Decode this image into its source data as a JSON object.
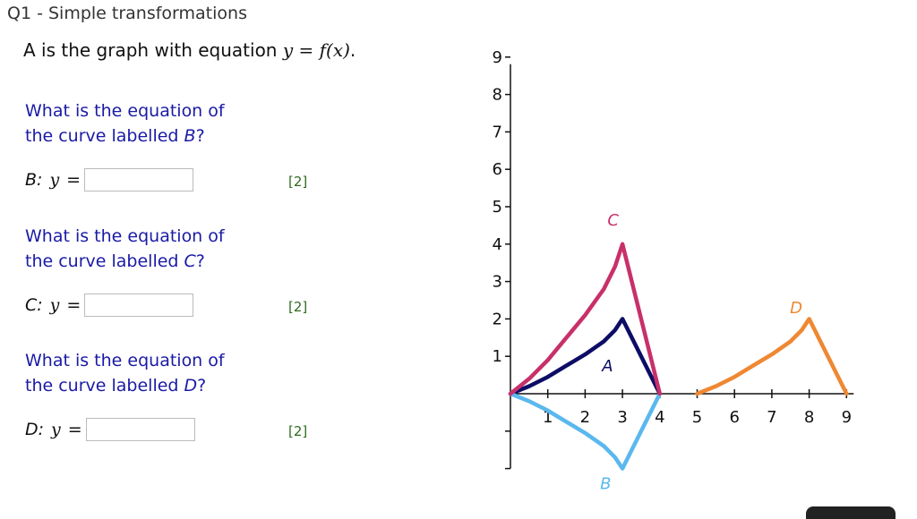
{
  "title": "Q1 - Simple transformations",
  "intro": {
    "text_before": "A is the graph with equation",
    "equation": "y = f(x)",
    "text_after": "."
  },
  "questions": [
    {
      "line1": "What is the equation of",
      "line2_prefix": "the curve labelled ",
      "curve": "B",
      "line2_suffix": "?",
      "answer_label": "B:",
      "answer_var": "y",
      "answer_eq": "=",
      "value": "",
      "marks": "[2]"
    },
    {
      "line1": "What is the equation of",
      "line2_prefix": "the curve labelled ",
      "curve": "C",
      "line2_suffix": "?",
      "answer_label": "C:",
      "answer_var": "y",
      "answer_eq": "=",
      "value": "",
      "marks": "[2]"
    },
    {
      "line1": "What is the equation of",
      "line2_prefix": "the curve labelled ",
      "curve": "D",
      "line2_suffix": "?",
      "answer_label": "D:",
      "answer_var": "y",
      "answer_eq": "=",
      "value": "",
      "marks": "[2]"
    }
  ],
  "chart_data": {
    "type": "line",
    "x_ticks": [
      "1",
      "2",
      "3",
      "4",
      "5",
      "6",
      "7",
      "8",
      "9"
    ],
    "y_ticks": [
      "1",
      "2",
      "3",
      "4",
      "5",
      "6",
      "7",
      "8",
      "9"
    ],
    "xlim": [
      0,
      9
    ],
    "ylim": [
      -2,
      9
    ],
    "series": [
      {
        "name": "A",
        "color": "#0d0d66",
        "points": [
          [
            0,
            0
          ],
          [
            0.5,
            0.2
          ],
          [
            1,
            0.45
          ],
          [
            1.5,
            0.75
          ],
          [
            2,
            1.05
          ],
          [
            2.5,
            1.4
          ],
          [
            2.8,
            1.7
          ],
          [
            3,
            2
          ],
          [
            4,
            0
          ]
        ]
      },
      {
        "name": "B",
        "color": "#5bb8ee",
        "points": [
          [
            0,
            0
          ],
          [
            0.5,
            -0.2
          ],
          [
            1,
            -0.45
          ],
          [
            1.5,
            -0.75
          ],
          [
            2,
            -1.05
          ],
          [
            2.5,
            -1.4
          ],
          [
            2.8,
            -1.7
          ],
          [
            3,
            -2
          ],
          [
            4,
            0
          ]
        ]
      },
      {
        "name": "C",
        "color": "#c8306a",
        "points": [
          [
            0,
            0
          ],
          [
            0.5,
            0.4
          ],
          [
            1,
            0.9
          ],
          [
            1.5,
            1.5
          ],
          [
            2,
            2.1
          ],
          [
            2.5,
            2.8
          ],
          [
            2.8,
            3.4
          ],
          [
            3,
            4
          ],
          [
            4,
            0
          ]
        ]
      },
      {
        "name": "D",
        "color": "#ee8833",
        "points": [
          [
            5,
            0
          ],
          [
            5.5,
            0.2
          ],
          [
            6,
            0.45
          ],
          [
            6.5,
            0.75
          ],
          [
            7,
            1.05
          ],
          [
            7.5,
            1.4
          ],
          [
            7.8,
            1.7
          ],
          [
            8,
            2
          ],
          [
            9,
            0
          ]
        ]
      }
    ]
  }
}
